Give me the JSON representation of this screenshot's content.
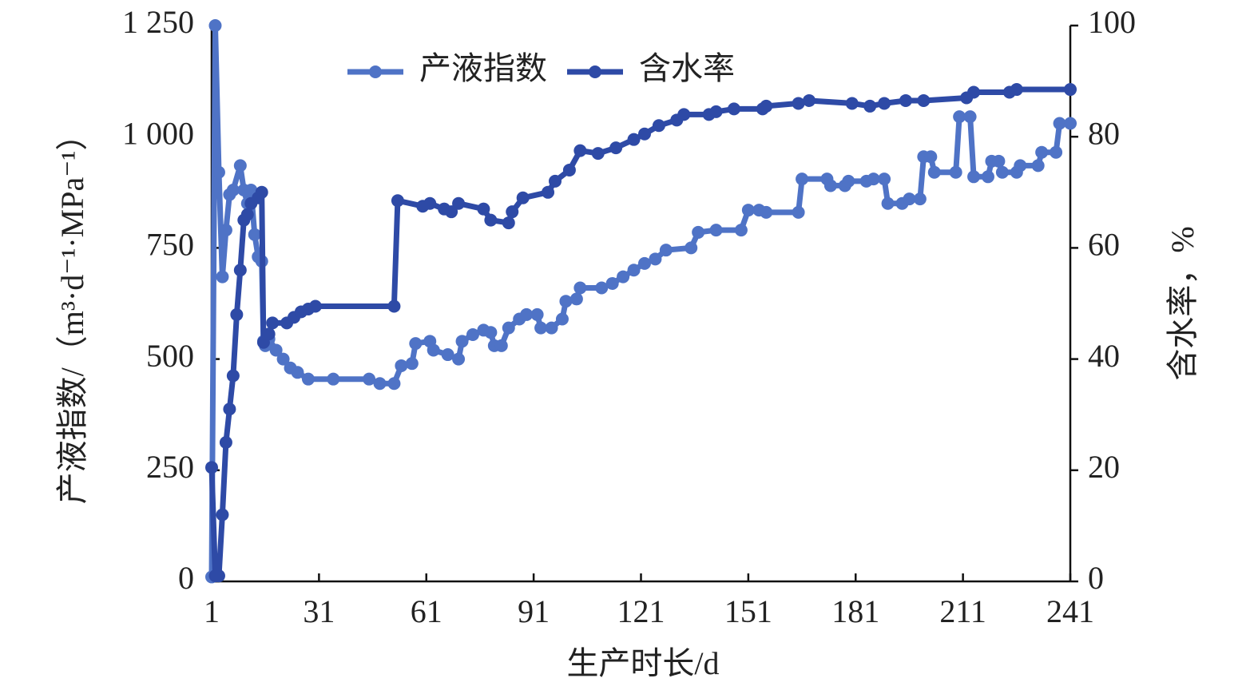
{
  "chart_data": {
    "type": "line",
    "xlabel": "生产时长/d",
    "ylabel": "产液指数/（m³·d⁻¹·MPa⁻¹）",
    "y2label": "含水率，%",
    "xlim": [
      1,
      241
    ],
    "xticks": [
      1,
      31,
      61,
      91,
      121,
      151,
      181,
      211,
      241
    ],
    "ylim": [
      0,
      1250
    ],
    "yticks": [
      0,
      250,
      500,
      750,
      {
        "value": 1000,
        "label": "1 000"
      },
      {
        "value": 1250,
        "label": "1 250"
      }
    ],
    "y2lim": [
      0,
      100
    ],
    "y2ticks": [
      0,
      20,
      40,
      60,
      80,
      100
    ],
    "legend": "top",
    "series": [
      {
        "name": "产液指数",
        "color": "#4f73c6",
        "x": [
          1,
          2,
          3,
          4,
          5,
          6,
          7,
          9,
          10,
          11,
          12,
          13,
          14,
          15,
          15.5,
          16,
          17,
          19,
          21,
          23,
          25,
          28,
          35,
          45,
          48,
          52,
          54,
          57,
          58,
          62,
          63,
          67,
          70,
          71,
          74,
          77,
          79,
          80,
          82,
          84,
          87,
          89,
          92,
          93,
          96,
          99,
          100,
          103,
          104,
          110,
          113,
          116,
          119,
          122,
          125,
          128,
          135,
          137,
          142,
          149,
          151,
          154,
          156,
          165,
          166,
          173,
          174,
          178,
          179,
          184,
          186,
          189,
          190,
          194,
          196,
          199,
          200,
          202,
          203,
          209,
          210,
          213,
          214,
          218,
          219,
          221,
          222,
          226,
          227,
          232,
          233,
          237,
          238,
          241
        ],
        "values": [
          10,
          1250,
          920,
          685,
          790,
          870,
          880,
          935,
          880,
          850,
          880,
          780,
          730,
          720,
          540,
          530,
          545,
          520,
          500,
          480,
          470,
          455,
          455,
          455,
          445,
          445,
          485,
          490,
          535,
          540,
          520,
          510,
          500,
          540,
          555,
          565,
          560,
          530,
          530,
          570,
          590,
          600,
          600,
          570,
          570,
          590,
          630,
          635,
          660,
          660,
          670,
          685,
          700,
          715,
          725,
          745,
          750,
          785,
          790,
          790,
          835,
          835,
          830,
          830,
          905,
          905,
          890,
          890,
          900,
          900,
          905,
          905,
          850,
          850,
          860,
          860,
          955,
          955,
          920,
          920,
          1045,
          1045,
          910,
          910,
          945,
          945,
          920,
          920,
          935,
          935,
          965,
          965,
          1030,
          1030
        ]
      },
      {
        "name": "含水率",
        "color": "#2e4aa6",
        "axis": "y2",
        "x": [
          1,
          2,
          3,
          4,
          5,
          6,
          7,
          8,
          9,
          10,
          11,
          12,
          14,
          15,
          15.5,
          17,
          18,
          22,
          24,
          26,
          28,
          30,
          52,
          53,
          60,
          62,
          66,
          68,
          70,
          77,
          79,
          84,
          85,
          88,
          95,
          97,
          101,
          104,
          109,
          114,
          119,
          122,
          126,
          131,
          133,
          140,
          142,
          147,
          155,
          156,
          165,
          168,
          180,
          185,
          189,
          195,
          200,
          212,
          214,
          224,
          226,
          241
        ],
        "values": [
          20.5,
          1,
          1,
          12,
          25,
          31,
          37,
          48,
          56,
          65,
          66,
          68,
          69,
          70,
          43,
          44.5,
          46.5,
          46.5,
          47.5,
          48.5,
          49,
          49.5,
          49.5,
          68.5,
          67.5,
          68,
          67,
          66.5,
          68,
          67,
          65,
          64.5,
          66.5,
          69,
          70,
          72,
          74,
          77.5,
          77,
          78,
          79.5,
          80.5,
          82,
          83,
          84,
          84,
          84.5,
          85,
          85,
          85.5,
          86,
          86.5,
          86,
          85.5,
          86,
          86.5,
          86.5,
          87,
          88,
          88,
          88.5,
          88.5
        ]
      }
    ]
  }
}
